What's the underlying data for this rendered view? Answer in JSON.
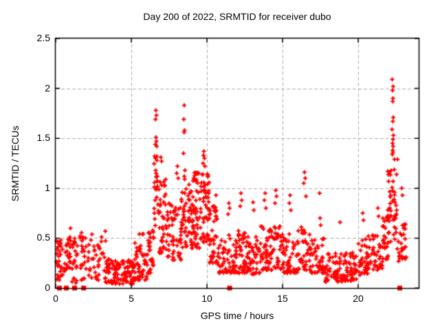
{
  "window": {
    "background": "#ffffff",
    "text_color": "#000000"
  },
  "chart_data": {
    "type": "scatter",
    "title": "Day 200 of 2022, SRMTID for receiver dubo",
    "xlabel": "GPS time / hours",
    "ylabel": "SRMTID / TECUs",
    "xlim": [
      0,
      24
    ],
    "ylim": [
      0,
      2.5
    ],
    "grid": true,
    "legend": "none",
    "grid_color": "#aaaaaa",
    "frame_color": "#000000",
    "marker": {
      "shape": "plus",
      "size": 7,
      "stroke": 2,
      "color": "#ff0000"
    },
    "zero_marker": {
      "shape": "square",
      "size": 7,
      "color": "#ff0000",
      "y": 0,
      "x_positions": [
        0.25,
        0.7,
        1.25,
        1.85,
        11.5,
        22.75
      ]
    },
    "xticks": [
      {
        "v": 0,
        "label": "0"
      },
      {
        "v": 5,
        "label": "5"
      },
      {
        "v": 10,
        "label": "10"
      },
      {
        "v": 15,
        "label": "15"
      },
      {
        "v": 20,
        "label": "20"
      }
    ],
    "yticks": [
      {
        "v": 0,
        "label": "0"
      },
      {
        "v": 0.5,
        "label": "0.5"
      },
      {
        "v": 1,
        "label": "1"
      },
      {
        "v": 1.5,
        "label": "1.5"
      },
      {
        "v": 2,
        "label": "2"
      },
      {
        "v": 2.5,
        "label": "2.5"
      }
    ],
    "seed": 20220200,
    "clusters": [
      {
        "x0": 0.05,
        "x1": 0.45,
        "y0": 0.08,
        "y1": 0.48,
        "n": 30,
        "bias": 1.4
      },
      {
        "x0": 0.55,
        "x1": 0.78,
        "y0": 0.17,
        "y1": 0.5,
        "n": 16,
        "bias": 1.2
      },
      {
        "x0": 0.82,
        "x1": 1.0,
        "y0": 0.2,
        "y1": 0.67,
        "n": 14,
        "bias": 1.3
      },
      {
        "x0": 1.05,
        "x1": 1.45,
        "y0": 0.05,
        "y1": 0.5,
        "n": 22,
        "bias": 1.5
      },
      {
        "x0": 1.6,
        "x1": 2.4,
        "y0": 0.08,
        "y1": 0.57,
        "n": 34,
        "bias": 1.5
      },
      {
        "x0": 2.5,
        "x1": 2.95,
        "y0": 0.08,
        "y1": 0.47,
        "n": 20,
        "bias": 1.4
      },
      {
        "x0": 3.0,
        "x1": 3.3,
        "y0": 0.3,
        "y1": 0.62,
        "n": 7,
        "bias": 1.0
      },
      {
        "x0": 3.2,
        "x1": 3.55,
        "y0": 0.05,
        "y1": 0.35,
        "n": 18,
        "bias": 1.3
      },
      {
        "x0": 3.5,
        "x1": 5.2,
        "y0": 0.04,
        "y1": 0.28,
        "n": 95,
        "bias": 1.3
      },
      {
        "x0": 5.2,
        "x1": 6.1,
        "y0": 0.08,
        "y1": 0.55,
        "n": 55,
        "bias": 1.6
      },
      {
        "x0": 6.1,
        "x1": 6.5,
        "y0": 0.15,
        "y1": 0.62,
        "n": 28,
        "bias": 1.4
      },
      {
        "x0": 6.5,
        "x1": 6.8,
        "y0": 0.55,
        "y1": 1.35,
        "n": 20,
        "bias": 1.2
      },
      {
        "x0": 6.8,
        "x1": 7.35,
        "y0": 0.35,
        "y1": 1.08,
        "n": 34,
        "bias": 1.5
      },
      {
        "x0": 7.0,
        "x1": 7.3,
        "y0": 0.85,
        "y1": 1.1,
        "n": 6,
        "bias": 1.0
      },
      {
        "x0": 7.35,
        "x1": 8.3,
        "y0": 0.28,
        "y1": 0.85,
        "n": 55,
        "bias": 1.5
      },
      {
        "x0": 8.3,
        "x1": 8.75,
        "y0": 0.4,
        "y1": 1.05,
        "n": 30,
        "bias": 1.3
      },
      {
        "x0": 8.75,
        "x1": 9.6,
        "y0": 0.4,
        "y1": 1.12,
        "n": 65,
        "bias": 1.4
      },
      {
        "x0": 9.15,
        "x1": 9.5,
        "y0": 1.02,
        "y1": 1.16,
        "n": 12,
        "bias": 1.0
      },
      {
        "x0": 9.6,
        "x1": 10.15,
        "y0": 0.45,
        "y1": 1.15,
        "n": 50,
        "bias": 1.3
      },
      {
        "x0": 10.15,
        "x1": 10.7,
        "y0": 0.25,
        "y1": 0.88,
        "n": 40,
        "bias": 1.5
      },
      {
        "x0": 10.7,
        "x1": 11.8,
        "y0": 0.15,
        "y1": 0.55,
        "n": 55,
        "bias": 1.5
      },
      {
        "x0": 11.8,
        "x1": 12.6,
        "y0": 0.15,
        "y1": 0.58,
        "n": 50,
        "bias": 1.5
      },
      {
        "x0": 12.6,
        "x1": 13.5,
        "y0": 0.14,
        "y1": 0.52,
        "n": 50,
        "bias": 1.5
      },
      {
        "x0": 13.5,
        "x1": 14.2,
        "y0": 0.18,
        "y1": 0.62,
        "n": 40,
        "bias": 1.5
      },
      {
        "x0": 14.2,
        "x1": 15.0,
        "y0": 0.18,
        "y1": 0.62,
        "n": 42,
        "bias": 1.5
      },
      {
        "x0": 15.0,
        "x1": 16.0,
        "y0": 0.15,
        "y1": 0.55,
        "n": 48,
        "bias": 1.5
      },
      {
        "x0": 16.0,
        "x1": 16.85,
        "y0": 0.18,
        "y1": 0.62,
        "n": 40,
        "bias": 1.5
      },
      {
        "x0": 16.85,
        "x1": 17.8,
        "y0": 0.15,
        "y1": 0.5,
        "n": 45,
        "bias": 1.5
      },
      {
        "x0": 17.8,
        "x1": 19.0,
        "y0": 0.06,
        "y1": 0.35,
        "n": 55,
        "bias": 1.3
      },
      {
        "x0": 19.0,
        "x1": 20.0,
        "y0": 0.07,
        "y1": 0.36,
        "n": 48,
        "bias": 1.3
      },
      {
        "x0": 20.0,
        "x1": 20.65,
        "y0": 0.13,
        "y1": 0.5,
        "n": 35,
        "bias": 1.4
      },
      {
        "x0": 20.65,
        "x1": 21.6,
        "y0": 0.18,
        "y1": 0.55,
        "n": 42,
        "bias": 1.4
      },
      {
        "x0": 21.6,
        "x1": 22.0,
        "y0": 0.25,
        "y1": 0.72,
        "n": 28,
        "bias": 1.3
      },
      {
        "x0": 21.95,
        "x1": 22.55,
        "y0": 0.45,
        "y1": 1.25,
        "n": 45,
        "bias": 1.1
      },
      {
        "x0": 22.55,
        "x1": 23.2,
        "y0": 0.25,
        "y1": 0.66,
        "n": 30,
        "bias": 1.4
      }
    ],
    "spike_points": [
      [
        6.62,
        1.78
      ],
      [
        6.66,
        1.73
      ],
      [
        6.6,
        1.69
      ],
      [
        6.63,
        1.51
      ],
      [
        6.66,
        1.47
      ],
      [
        6.59,
        1.44
      ],
      [
        6.68,
        1.42
      ],
      [
        6.55,
        1.32
      ],
      [
        6.7,
        1.28
      ],
      [
        6.61,
        1.18
      ],
      [
        6.72,
        1.12
      ],
      [
        6.95,
        1.31
      ],
      [
        7.0,
        1.27
      ],
      [
        8.0,
        1.15
      ],
      [
        8.05,
        1.22
      ],
      [
        8.1,
        1.1
      ],
      [
        8.5,
        1.83
      ],
      [
        8.47,
        1.69
      ],
      [
        8.52,
        1.58
      ],
      [
        8.49,
        1.56
      ],
      [
        8.45,
        1.35
      ],
      [
        8.55,
        1.18
      ],
      [
        8.5,
        1.12
      ],
      [
        8.53,
        1.09
      ],
      [
        9.8,
        1.37
      ],
      [
        9.77,
        1.33
      ],
      [
        9.84,
        1.3
      ],
      [
        9.74,
        1.25
      ],
      [
        9.86,
        1.22
      ],
      [
        10.6,
        0.93
      ],
      [
        11.45,
        0.85
      ],
      [
        11.5,
        0.8
      ],
      [
        11.4,
        0.74
      ],
      [
        12.25,
        0.95
      ],
      [
        12.3,
        0.88
      ],
      [
        12.2,
        0.82
      ],
      [
        13.05,
        0.86
      ],
      [
        13.1,
        0.78
      ],
      [
        13.85,
        0.95
      ],
      [
        13.8,
        0.88
      ],
      [
        13.9,
        0.8
      ],
      [
        14.55,
        0.98
      ],
      [
        14.6,
        0.92
      ],
      [
        14.5,
        0.85
      ],
      [
        15.5,
        0.93
      ],
      [
        15.45,
        0.85
      ],
      [
        15.55,
        0.78
      ],
      [
        16.45,
        1.16
      ],
      [
        16.5,
        1.1
      ],
      [
        16.4,
        1.05
      ],
      [
        16.55,
        0.92
      ],
      [
        17.45,
        0.95
      ],
      [
        17.48,
        0.7
      ],
      [
        17.52,
        0.63
      ],
      [
        18.8,
        0.66
      ],
      [
        20.3,
        0.75
      ],
      [
        20.35,
        0.68
      ],
      [
        21.3,
        0.8
      ],
      [
        21.35,
        0.72
      ],
      [
        22.25,
        2.09
      ],
      [
        22.31,
        2.02
      ],
      [
        22.27,
        1.98
      ],
      [
        22.3,
        1.9
      ],
      [
        22.28,
        1.87
      ],
      [
        22.32,
        1.71
      ],
      [
        22.29,
        1.67
      ],
      [
        22.24,
        1.59
      ],
      [
        22.33,
        1.53
      ],
      [
        22.3,
        1.49
      ],
      [
        22.27,
        1.45
      ],
      [
        22.31,
        1.42
      ],
      [
        22.28,
        1.38
      ],
      [
        22.3,
        1.36
      ],
      [
        22.26,
        1.34
      ],
      [
        22.4,
        1.29
      ],
      [
        22.6,
        1.29
      ],
      [
        22.88,
        1.0
      ],
      [
        22.93,
        0.93
      ]
    ]
  }
}
